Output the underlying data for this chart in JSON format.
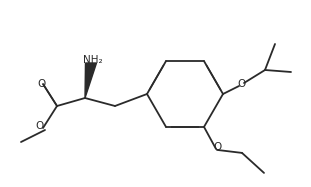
{
  "bg_color": "#ffffff",
  "line_color": "#2a2a2a",
  "line_width": 1.3,
  "dbo": 0.012,
  "fs": 7.5,
  "figsize": [
    3.11,
    1.87
  ],
  "dpi": 100,
  "xlim": [
    0,
    3.11
  ],
  "ylim": [
    0,
    1.87
  ]
}
